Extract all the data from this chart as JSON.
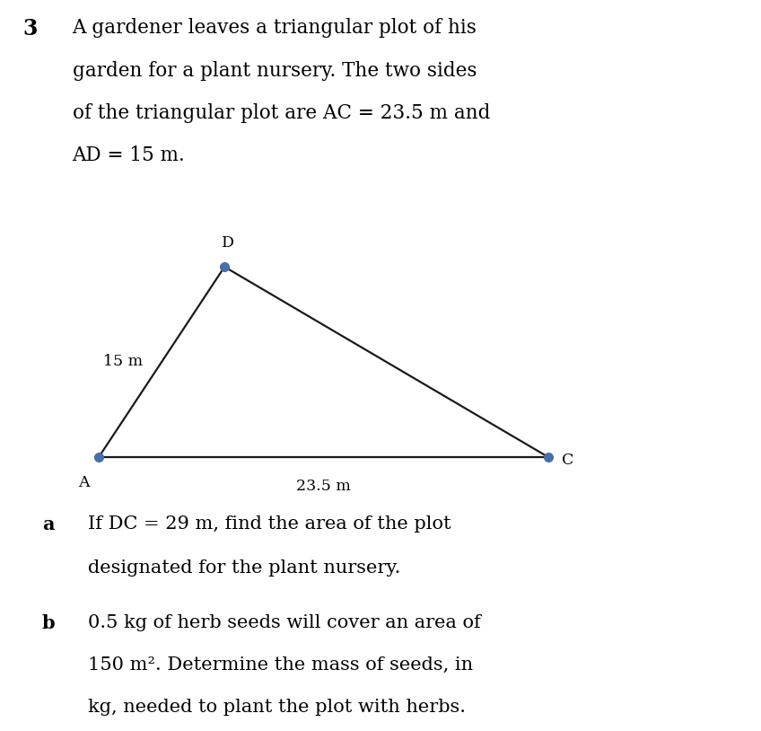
{
  "background_color": "#ffffff",
  "title_number": "3",
  "title_text_line1": "A gardener leaves a triangular plot of his",
  "title_text_line2": "garden for a plant nursery. The two sides",
  "title_text_line3": "of the triangular plot are AC = 23.5 m and",
  "title_text_line4": "AD = 15 m.",
  "triangle": {
    "A": [
      0.13,
      0.375
    ],
    "D": [
      0.295,
      0.635
    ],
    "C": [
      0.72,
      0.375
    ]
  },
  "vertex_dot_color": "#4a6fa5",
  "vertex_dot_size": 7,
  "edge_color": "#1a1a1a",
  "edge_linewidth": 1.6,
  "label_A": "A",
  "label_D": "D",
  "label_C": "C",
  "label_15m": "15 m",
  "label_235m": "23.5 m",
  "label_fontsize": 12.5,
  "text_fontsize": 15,
  "title_fontsize": 15.5,
  "number_fontsize": 17,
  "qa_label_a": "a",
  "qa_text_a1": "If DC = 29 m, find the area of the plot",
  "qa_text_a2": "designated for the plant nursery.",
  "qb_label_b": "b",
  "qb_text_b1": "0.5 kg of herb seeds will cover an area of",
  "qb_text_b2": "150 m². Determine the mass of seeds, in",
  "qb_text_b3": "kg, needed to plant the plot with herbs."
}
